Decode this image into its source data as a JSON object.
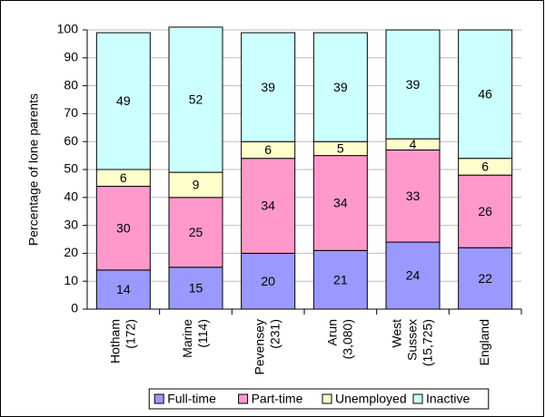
{
  "chart_data": {
    "type": "stacked_bar",
    "y_label": "Percentage of lone parents",
    "categories": [
      "Hotham (172)",
      "Marine (114)",
      "Pevensey (231)",
      "Arun (3,080)",
      "West Sussex (15,725)",
      "England"
    ],
    "series": [
      {
        "name": "Full-time",
        "color": "#9999ff",
        "values": [
          14,
          15,
          20,
          21,
          24,
          22
        ]
      },
      {
        "name": "Part-time",
        "color": "#ff99cc",
        "values": [
          30,
          25,
          34,
          34,
          33,
          26
        ]
      },
      {
        "name": "Unemployed",
        "color": "#ffffcc",
        "values": [
          6,
          9,
          6,
          5,
          4,
          6
        ]
      },
      {
        "name": "Inactive",
        "color": "#ccffff",
        "values": [
          49,
          52,
          39,
          39,
          39,
          46
        ]
      }
    ],
    "ylim": [
      0,
      100
    ],
    "yticks": [
      0,
      10,
      20,
      30,
      40,
      50,
      60,
      70,
      80,
      90,
      100
    ],
    "grid": true,
    "legend": "bottom"
  }
}
